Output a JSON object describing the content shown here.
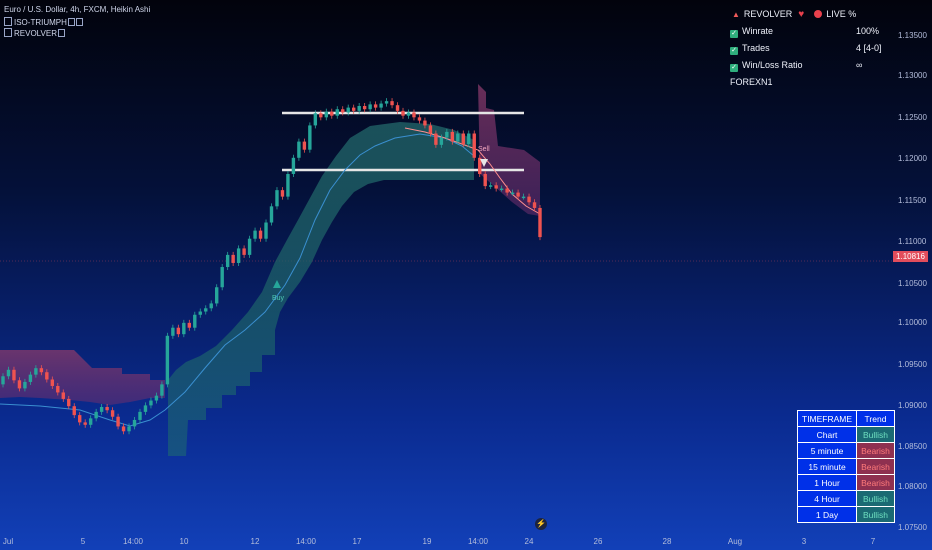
{
  "header": {
    "symbol_line": "Euro / U.S. Dollar, 4h, FXCM, Heikin Ashi",
    "indicator1": "ISO-TRIUMPH",
    "indicator2": "REVOLVER"
  },
  "panel": {
    "revolver_label": "REVOLVER",
    "live_label": "LIVE %",
    "rows": [
      {
        "label": "Winrate",
        "value": "100%"
      },
      {
        "label": "Trades",
        "value": "4 [4-0]"
      },
      {
        "label": "Win/Loss Ratio",
        "value": "∞"
      }
    ],
    "account": "FOREXN1"
  },
  "timeframe_table": {
    "headers": [
      "TIMEFRAME",
      "Trend"
    ],
    "rows": [
      {
        "tf": "Chart",
        "trend": "Bullish",
        "state": "bull"
      },
      {
        "tf": "5 minute",
        "trend": "Bearish",
        "state": "bear"
      },
      {
        "tf": "15 minute",
        "trend": "Bearish",
        "state": "bear"
      },
      {
        "tf": "1 Hour",
        "trend": "Bearish",
        "state": "bear"
      },
      {
        "tf": "4 Hour",
        "trend": "Bullish",
        "state": "bull"
      },
      {
        "tf": "1 Day",
        "trend": "Bullish",
        "state": "bull"
      }
    ]
  },
  "colors": {
    "bull": "#26a69a",
    "bear": "#ef5350",
    "accent_blue": "#0030e8",
    "level_line": "#e6e6e6"
  },
  "chart_data": {
    "type": "candlestick",
    "ylim": [
      1.072,
      1.1375
    ],
    "y_ticks": [
      "1.13500",
      "1.13000",
      "1.12500",
      "1.12000",
      "1.11500",
      "1.11000",
      "1.10500",
      "1.10000",
      "1.09500",
      "1.09000",
      "1.08500",
      "1.08000",
      "1.07500"
    ],
    "x_ticks": [
      "Jul",
      "5",
      "14:00",
      "10",
      "12",
      "14:00",
      "17",
      "19",
      "14:00",
      "24",
      "26",
      "28",
      "Aug",
      "3",
      "7"
    ],
    "last_price": "1.10816",
    "buy_label": "Buy",
    "sell_label": "Sell",
    "resistance_level": 1.1255,
    "support_level": 1.1187,
    "candles_open": [
      1.09,
      1.091,
      1.0918,
      1.0905,
      1.0895,
      1.0903,
      1.0912,
      1.092,
      1.0915,
      1.0906,
      1.0898,
      1.089,
      1.0882,
      1.0873,
      1.0862,
      1.0853,
      1.085,
      1.0858,
      1.0866,
      1.0872,
      1.0868,
      1.086,
      1.0848,
      1.0842,
      1.0848,
      1.0856,
      1.0866,
      1.0874,
      1.088,
      1.0886,
      1.09,
      1.096,
      1.097,
      1.0962,
      1.0976,
      1.097,
      1.0986,
      1.099,
      1.0994,
      1.1,
      1.102,
      1.1045,
      1.106,
      1.105,
      1.1068,
      1.106,
      1.108,
      1.109,
      1.108,
      1.11,
      1.112,
      1.114,
      1.1132,
      1.116,
      1.118,
      1.12,
      1.119,
      1.122,
      1.1235,
      1.123,
      1.1237,
      1.1232,
      1.124,
      1.1236,
      1.1242,
      1.1238,
      1.1244,
      1.124,
      1.1246,
      1.1242,
      1.1247,
      1.125,
      1.1245,
      1.1238,
      1.1232,
      1.1236,
      1.123,
      1.1226,
      1.122,
      1.121,
      1.1196,
      1.1205,
      1.1212,
      1.12,
      1.121,
      1.1197,
      1.121,
      1.118,
      1.116,
      1.1145,
      1.1146,
      1.1142,
      1.1142,
      1.1137,
      1.1137,
      1.1132,
      1.1132,
      1.1125,
      1.1118
    ],
    "candles_close": [
      1.091,
      1.0918,
      1.0905,
      1.0895,
      1.0903,
      1.0912,
      1.092,
      1.0915,
      1.0906,
      1.0898,
      1.089,
      1.0882,
      1.0873,
      1.0862,
      1.0853,
      1.085,
      1.0858,
      1.0866,
      1.0872,
      1.0868,
      1.086,
      1.0848,
      1.0842,
      1.0848,
      1.0856,
      1.0866,
      1.0874,
      1.088,
      1.0886,
      1.09,
      1.096,
      1.097,
      1.0962,
      1.0976,
      1.097,
      1.0986,
      1.099,
      1.0994,
      1.1,
      1.102,
      1.1045,
      1.106,
      1.105,
      1.1068,
      1.106,
      1.108,
      1.109,
      1.108,
      1.11,
      1.112,
      1.114,
      1.1132,
      1.116,
      1.118,
      1.12,
      1.119,
      1.122,
      1.1235,
      1.123,
      1.1237,
      1.1232,
      1.124,
      1.1236,
      1.1242,
      1.1238,
      1.1244,
      1.124,
      1.1246,
      1.1242,
      1.1247,
      1.125,
      1.1245,
      1.1238,
      1.1232,
      1.1236,
      1.123,
      1.1226,
      1.122,
      1.121,
      1.1196,
      1.1205,
      1.1212,
      1.12,
      1.121,
      1.1197,
      1.121,
      1.118,
      1.116,
      1.1145,
      1.1146,
      1.1142,
      1.1142,
      1.1137,
      1.1137,
      1.1132,
      1.1132,
      1.1125,
      1.1118,
      1.1082
    ]
  }
}
